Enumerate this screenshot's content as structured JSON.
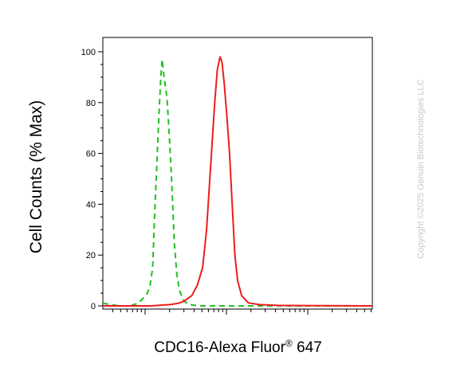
{
  "chart_data": {
    "type": "line",
    "ylabel": "Cell Counts (% Max)",
    "xlabel": {
      "main": "CDC16-Alexa Fluor",
      "sup": "®",
      "suffix": " 647"
    },
    "ylim": [
      0,
      100
    ],
    "yticks": [
      "0",
      "20",
      "40",
      "60",
      "80",
      "100"
    ],
    "x_scale": "log",
    "xlim": [
      0,
      1
    ],
    "grid": false,
    "legend": "none",
    "series": [
      {
        "style": "dashed",
        "color": "#22c022",
        "points": [
          [
            0.0,
            1
          ],
          [
            0.03,
            0.5
          ],
          [
            0.06,
            0
          ],
          [
            0.1,
            0
          ],
          [
            0.13,
            1
          ],
          [
            0.15,
            3
          ],
          [
            0.165,
            5
          ],
          [
            0.175,
            8
          ],
          [
            0.185,
            15
          ],
          [
            0.19,
            30
          ],
          [
            0.2,
            55
          ],
          [
            0.208,
            75
          ],
          [
            0.215,
            90
          ],
          [
            0.22,
            97
          ],
          [
            0.225,
            92
          ],
          [
            0.23,
            88
          ],
          [
            0.238,
            82
          ],
          [
            0.245,
            70
          ],
          [
            0.255,
            50
          ],
          [
            0.265,
            25
          ],
          [
            0.275,
            12
          ],
          [
            0.285,
            6
          ],
          [
            0.3,
            2
          ],
          [
            0.32,
            0.5
          ],
          [
            0.36,
            0
          ],
          [
            1.0,
            0
          ]
        ]
      },
      {
        "style": "solid",
        "color": "#ee1c1c",
        "points": [
          [
            0.0,
            0
          ],
          [
            0.1,
            0
          ],
          [
            0.18,
            0
          ],
          [
            0.22,
            0.3
          ],
          [
            0.25,
            0.5
          ],
          [
            0.28,
            1
          ],
          [
            0.3,
            1.8
          ],
          [
            0.33,
            4
          ],
          [
            0.35,
            8
          ],
          [
            0.37,
            15
          ],
          [
            0.385,
            30
          ],
          [
            0.4,
            55
          ],
          [
            0.415,
            80
          ],
          [
            0.425,
            93
          ],
          [
            0.435,
            98
          ],
          [
            0.442,
            96
          ],
          [
            0.45,
            88
          ],
          [
            0.46,
            75
          ],
          [
            0.47,
            60
          ],
          [
            0.48,
            40
          ],
          [
            0.49,
            20
          ],
          [
            0.5,
            10
          ],
          [
            0.515,
            4
          ],
          [
            0.54,
            1.2
          ],
          [
            0.58,
            0.5
          ],
          [
            0.65,
            0.2
          ],
          [
            1.0,
            0
          ]
        ]
      }
    ]
  },
  "watermark": "Copyright ©2025 Genuin Biotechnologies LLC"
}
